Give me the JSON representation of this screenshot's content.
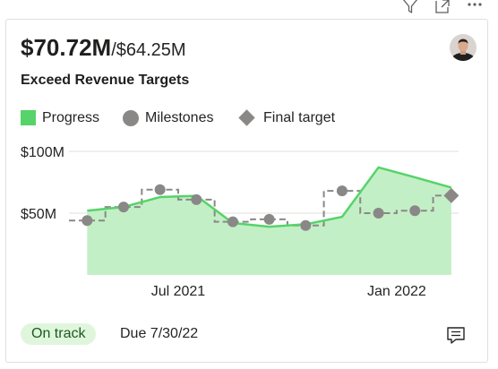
{
  "header_icons": [
    {
      "name": "filter-icon"
    },
    {
      "name": "focus-mode-icon"
    },
    {
      "name": "more-options-icon"
    }
  ],
  "goal": {
    "current_value": "$70.72M",
    "target_value": "/$64.25M",
    "name": "Exceed Revenue Targets",
    "status": "On track",
    "due": "Due 7/30/22",
    "owner_avatar_icon": "user-avatar-icon",
    "comment_icon": "comment-icon"
  },
  "legend": {
    "progress": "Progress",
    "milestones": "Milestones",
    "final_target": "Final target"
  },
  "colors": {
    "progress_line": "#56d36a",
    "progress_fill": "#c3efc6",
    "milestone": "#8a8886",
    "target_line": "#8a8886",
    "status_bg": "#dff6dd",
    "gridline": "#e1dfdd"
  },
  "chart_data": {
    "type": "area",
    "y_unit": "$M",
    "y_ticks": [
      {
        "value": 100,
        "label": "$100M"
      },
      {
        "value": 50,
        "label": "$50M"
      }
    ],
    "x_ticks": [
      {
        "index": 2.5,
        "label": "Jul 2021"
      },
      {
        "index": 8.5,
        "label": "Jan 2022"
      }
    ],
    "x_range": [
      -0.5,
      10.2
    ],
    "ylim": [
      0,
      100
    ],
    "grid": true,
    "progress": {
      "name": "Progress",
      "points": [
        {
          "x": 0,
          "y": 52
        },
        {
          "x": 1,
          "y": 55
        },
        {
          "x": 2,
          "y": 63
        },
        {
          "x": 3,
          "y": 64
        },
        {
          "x": 4,
          "y": 42
        },
        {
          "x": 5,
          "y": 39
        },
        {
          "x": 6,
          "y": 41
        },
        {
          "x": 7,
          "y": 47
        },
        {
          "x": 8,
          "y": 87
        },
        {
          "x": 9,
          "y": 79
        },
        {
          "x": 10,
          "y": 70.72
        }
      ]
    },
    "milestones": {
      "name": "Milestones",
      "points": [
        {
          "x": 0,
          "y": 44
        },
        {
          "x": 1,
          "y": 55
        },
        {
          "x": 2,
          "y": 69
        },
        {
          "x": 3,
          "y": 61
        },
        {
          "x": 4,
          "y": 43
        },
        {
          "x": 5,
          "y": 45
        },
        {
          "x": 6,
          "y": 40
        },
        {
          "x": 7,
          "y": 68
        },
        {
          "x": 8,
          "y": 50
        },
        {
          "x": 9,
          "y": 52
        }
      ]
    },
    "final_target": {
      "name": "Final target",
      "x": 10,
      "y": 64.25
    }
  }
}
